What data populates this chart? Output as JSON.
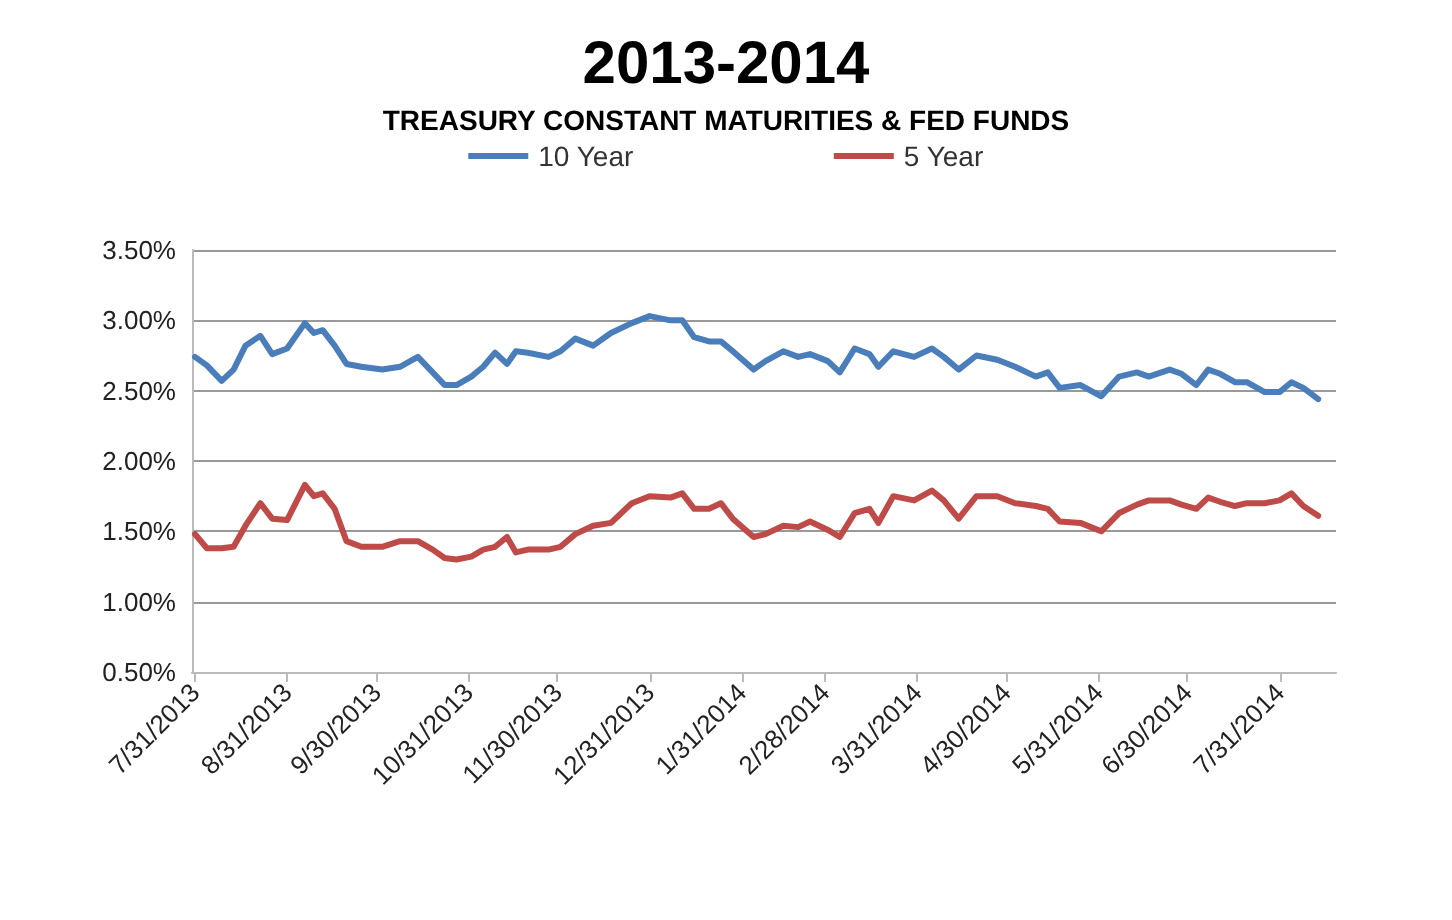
{
  "chart_data": {
    "type": "line",
    "title": "2013-2014",
    "subtitle": "TREASURY CONSTANT MATURITIES & FED FUNDS",
    "x": [
      "2013-07-31",
      "2013-08-04",
      "2013-08-09",
      "2013-08-13",
      "2013-08-17",
      "2013-08-22",
      "2013-08-26",
      "2013-08-31",
      "2013-09-06",
      "2013-09-09",
      "2013-09-12",
      "2013-09-16",
      "2013-09-20",
      "2013-09-25",
      "2013-10-02",
      "2013-10-08",
      "2013-10-14",
      "2013-10-19",
      "2013-10-23",
      "2013-10-27",
      "2013-11-01",
      "2013-11-05",
      "2013-11-09",
      "2013-11-13",
      "2013-11-16",
      "2013-11-20",
      "2013-11-27",
      "2013-12-01",
      "2013-12-06",
      "2013-12-12",
      "2013-12-18",
      "2013-12-25",
      "2013-12-31",
      "2014-01-07",
      "2014-01-11",
      "2014-01-15",
      "2014-01-20",
      "2014-01-24",
      "2014-01-28",
      "2014-02-04",
      "2014-02-08",
      "2014-02-14",
      "2014-02-19",
      "2014-02-23",
      "2014-03-01",
      "2014-03-05",
      "2014-03-10",
      "2014-03-15",
      "2014-03-18",
      "2014-03-23",
      "2014-03-30",
      "2014-04-05",
      "2014-04-09",
      "2014-04-14",
      "2014-04-20",
      "2014-04-27",
      "2014-05-03",
      "2014-05-10",
      "2014-05-14",
      "2014-05-18",
      "2014-05-25",
      "2014-06-01",
      "2014-06-07",
      "2014-06-13",
      "2014-06-17",
      "2014-06-24",
      "2014-06-28",
      "2014-07-03",
      "2014-07-07",
      "2014-07-11",
      "2014-07-16",
      "2014-07-20",
      "2014-07-26",
      "2014-07-31",
      "2014-08-04",
      "2014-08-08",
      "2014-08-13"
    ],
    "series": [
      {
        "name": "10 Year",
        "color": "#4a7ebb",
        "values": [
          2.74,
          2.68,
          2.57,
          2.65,
          2.82,
          2.89,
          2.76,
          2.8,
          2.98,
          2.91,
          2.93,
          2.82,
          2.69,
          2.67,
          2.65,
          2.67,
          2.74,
          2.63,
          2.54,
          2.54,
          2.6,
          2.67,
          2.77,
          2.69,
          2.78,
          2.77,
          2.74,
          2.78,
          2.87,
          2.82,
          2.91,
          2.98,
          3.03,
          3.0,
          3.0,
          2.88,
          2.85,
          2.85,
          2.78,
          2.65,
          2.71,
          2.78,
          2.74,
          2.76,
          2.71,
          2.63,
          2.8,
          2.76,
          2.67,
          2.78,
          2.74,
          2.8,
          2.74,
          2.65,
          2.75,
          2.72,
          2.67,
          2.6,
          2.63,
          2.52,
          2.54,
          2.46,
          2.6,
          2.63,
          2.6,
          2.65,
          2.62,
          2.54,
          2.65,
          2.62,
          2.56,
          2.56,
          2.49,
          2.49,
          2.56,
          2.52,
          2.44
        ]
      },
      {
        "name": "5 Year",
        "color": "#be4b48",
        "values": [
          1.48,
          1.38,
          1.38,
          1.39,
          1.54,
          1.7,
          1.59,
          1.58,
          1.83,
          1.75,
          1.77,
          1.66,
          1.43,
          1.39,
          1.39,
          1.43,
          1.43,
          1.37,
          1.31,
          1.3,
          1.32,
          1.37,
          1.39,
          1.46,
          1.35,
          1.37,
          1.37,
          1.39,
          1.48,
          1.54,
          1.56,
          1.7,
          1.75,
          1.74,
          1.77,
          1.66,
          1.66,
          1.7,
          1.59,
          1.46,
          1.48,
          1.54,
          1.53,
          1.57,
          1.51,
          1.46,
          1.63,
          1.66,
          1.56,
          1.75,
          1.72,
          1.79,
          1.72,
          1.59,
          1.75,
          1.75,
          1.7,
          1.68,
          1.66,
          1.57,
          1.56,
          1.5,
          1.63,
          1.69,
          1.72,
          1.72,
          1.69,
          1.66,
          1.74,
          1.71,
          1.68,
          1.7,
          1.7,
          1.72,
          1.77,
          1.68,
          1.61
        ]
      }
    ],
    "xlim": [
      "2013-07-30",
      "2014-08-19"
    ],
    "xticks": [
      {
        "value": "2013-07-31",
        "label": "7/31/2013"
      },
      {
        "value": "2013-08-31",
        "label": "8/31/2013"
      },
      {
        "value": "2013-09-30",
        "label": "9/30/2013"
      },
      {
        "value": "2013-10-31",
        "label": "10/31/2013"
      },
      {
        "value": "2013-11-30",
        "label": "11/30/2013"
      },
      {
        "value": "2013-12-31",
        "label": "12/31/2013"
      },
      {
        "value": "2014-01-31",
        "label": "1/31/2014"
      },
      {
        "value": "2014-02-28",
        "label": "2/28/2014"
      },
      {
        "value": "2014-03-31",
        "label": "3/31/2014"
      },
      {
        "value": "2014-04-30",
        "label": "4/30/2014"
      },
      {
        "value": "2014-05-31",
        "label": "5/31/2014"
      },
      {
        "value": "2014-06-30",
        "label": "6/30/2014"
      },
      {
        "value": "2014-07-31",
        "label": "7/31/2014"
      }
    ],
    "ylim": [
      0.5,
      3.5
    ],
    "yticks": [
      {
        "value": 0.5,
        "label": "0.50%"
      },
      {
        "value": 1.0,
        "label": "1.00%"
      },
      {
        "value": 1.5,
        "label": "1.50%"
      },
      {
        "value": 2.0,
        "label": "2.00%"
      },
      {
        "value": 2.5,
        "label": "2.50%"
      },
      {
        "value": 3.0,
        "label": "3.00%"
      },
      {
        "value": 3.5,
        "label": "3.50%"
      }
    ],
    "grid": "y",
    "legend": "top",
    "marker": "none",
    "line_style": "solid"
  }
}
